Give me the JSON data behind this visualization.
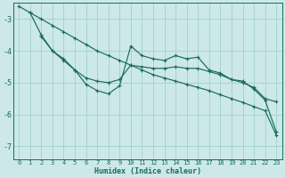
{
  "xlabel": "Humidex (Indice chaleur)",
  "background_color": "#cce8e8",
  "grid_color": "#99cccc",
  "line_color": "#1a6b5a",
  "xlim": [
    -0.5,
    23.5
  ],
  "ylim": [
    -7.4,
    -2.5
  ],
  "yticks": [
    -7,
    -6,
    -5,
    -4,
    -3
  ],
  "xticks": [
    0,
    1,
    2,
    3,
    4,
    5,
    6,
    7,
    8,
    9,
    10,
    11,
    12,
    13,
    14,
    15,
    16,
    17,
    18,
    19,
    20,
    21,
    22,
    23
  ],
  "series": [
    {
      "x": [
        0,
        1,
        2,
        3,
        4,
        5,
        6,
        7,
        8,
        9,
        10,
        11,
        12,
        13,
        14,
        15,
        16,
        17,
        18,
        19,
        20,
        21,
        22,
        23
      ],
      "y": [
        -2.6,
        -2.8,
        -3.0,
        -3.2,
        -3.4,
        -3.6,
        -3.8,
        -4.0,
        -4.15,
        -4.3,
        -4.45,
        -4.6,
        -4.75,
        -4.85,
        -4.95,
        -5.05,
        -5.15,
        -5.25,
        -5.38,
        -5.5,
        -5.62,
        -5.75,
        -5.88,
        -6.65
      ],
      "marker": true
    },
    {
      "x": [
        1,
        2,
        3,
        4,
        5,
        6,
        7,
        8,
        9,
        10,
        11,
        12,
        13,
        14,
        15,
        16,
        17,
        18,
        19,
        20,
        21,
        22,
        23
      ],
      "y": [
        -2.8,
        -3.5,
        -4.0,
        -4.3,
        -4.6,
        -4.85,
        -4.95,
        -5.0,
        -4.9,
        -4.45,
        -4.5,
        -4.55,
        -4.55,
        -4.5,
        -4.55,
        -4.55,
        -4.65,
        -4.75,
        -4.9,
        -5.0,
        -5.15,
        -5.5,
        -5.6
      ],
      "marker": true
    },
    {
      "x": [
        2,
        3,
        4,
        5,
        6,
        7,
        8,
        9,
        10,
        11,
        12,
        13,
        14,
        15,
        16,
        17,
        18,
        19,
        20,
        21,
        22,
        23
      ],
      "y": [
        -3.55,
        -4.0,
        -4.25,
        -4.6,
        -5.05,
        -5.25,
        -5.35,
        -5.1,
        -3.85,
        -4.15,
        -4.25,
        -4.3,
        -4.15,
        -4.25,
        -4.2,
        -4.6,
        -4.7,
        -4.9,
        -4.95,
        -5.2,
        -5.55,
        -6.55
      ],
      "marker": true
    }
  ]
}
